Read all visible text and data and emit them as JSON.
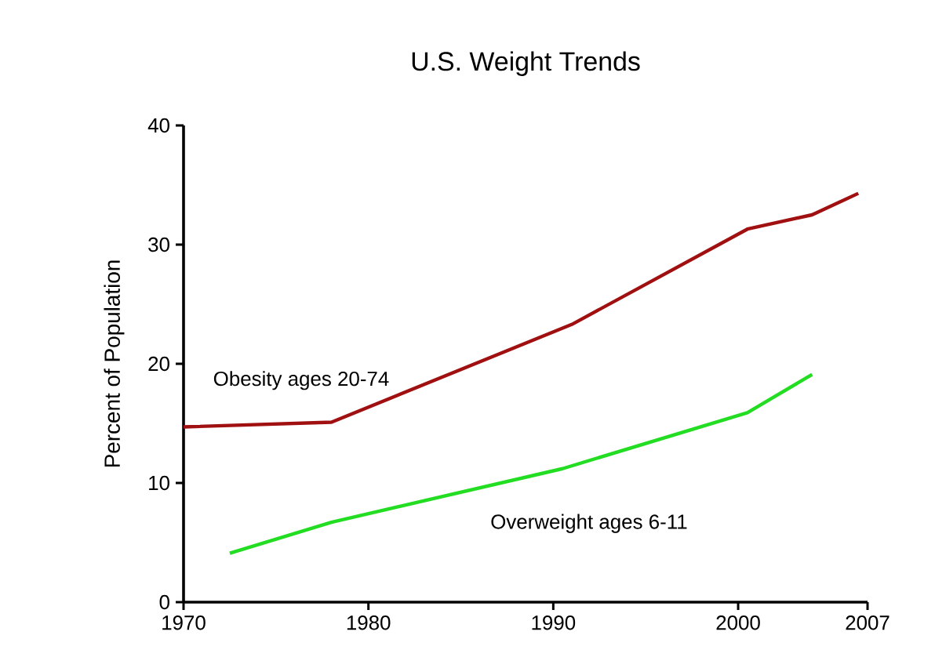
{
  "chart_data": {
    "type": "line",
    "title": "U.S. Weight Trends",
    "ylabel": "Percent of Population",
    "xlim": [
      1970,
      2007
    ],
    "xticks": [
      1970,
      1980,
      1990,
      2000,
      2007
    ],
    "ylim": [
      0,
      40
    ],
    "yticks": [
      0,
      10,
      20,
      30,
      40
    ],
    "grid": false,
    "marker": "none",
    "line_style": "solid",
    "series": [
      {
        "name": "Obesity ages 20-74",
        "color": "#a01010",
        "x": [
          1970,
          1978,
          1991,
          2000.5,
          2004,
          2006.5
        ],
        "values": [
          14.7,
          15.1,
          23.3,
          31.3,
          32.5,
          34.3
        ]
      },
      {
        "name": "Overweight ages 6-11",
        "color": "#22dd22",
        "x": [
          1972.5,
          1978,
          1990.5,
          2000.5,
          2004
        ],
        "values": [
          4.1,
          6.7,
          11.2,
          15.9,
          19.1
        ]
      }
    ]
  }
}
